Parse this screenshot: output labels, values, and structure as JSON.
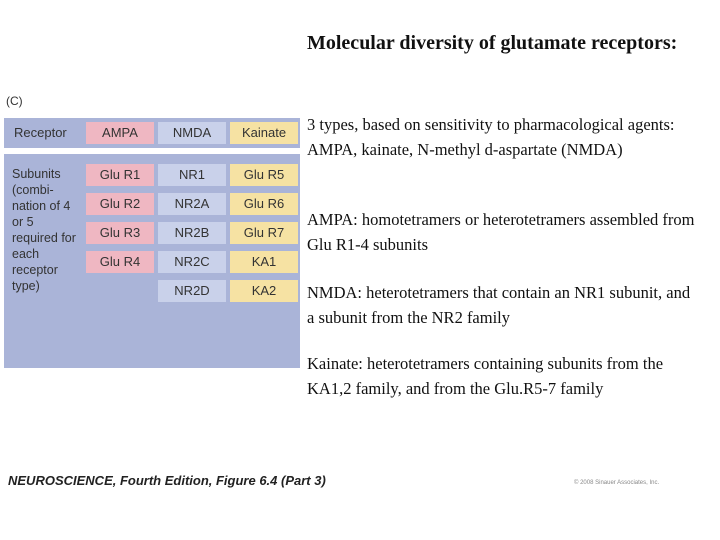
{
  "slide": {
    "title": "Molecular diversity of glutamate receptors:",
    "bullets": [
      "3 types, based on sensitivity to pharmacological agents: AMPA, kainate, N-methyl d-aspartate (NMDA)",
      "AMPA: homotetramers or heterotetramers assembled from Glu R1-4 subunits",
      "NMDA: heterotetramers that contain an NR1 subunit, and a subunit from the NR2 family",
      "Kainate: heterotetramers containing subunits from the KA1,2 family, and from the Glu.R5-7 family"
    ]
  },
  "figure": {
    "panel_label": "(C)",
    "receptor_label": "Receptor",
    "subunits_label": "Subunits (combi-nation of 4 or 5 required for each receptor type)",
    "columns": [
      {
        "name": "AMPA",
        "subunits": [
          "Glu R1",
          "Glu R2",
          "Glu R3",
          "Glu R4"
        ],
        "color": "#efb7c2"
      },
      {
        "name": "NMDA",
        "subunits": [
          "NR1",
          "NR2A",
          "NR2B",
          "NR2C",
          "NR2D"
        ],
        "color": "#c9d1ea"
      },
      {
        "name": "Kainate",
        "subunits": [
          "Glu R5",
          "Glu R6",
          "Glu R7",
          "KA1",
          "KA2"
        ],
        "color": "#f6e2a3"
      }
    ]
  },
  "footer": {
    "caption": "NEUROSCIENCE, Fourth Edition, Figure 6.4 (Part 3)",
    "copyright": "© 2008 Sinauer Associates, Inc."
  }
}
